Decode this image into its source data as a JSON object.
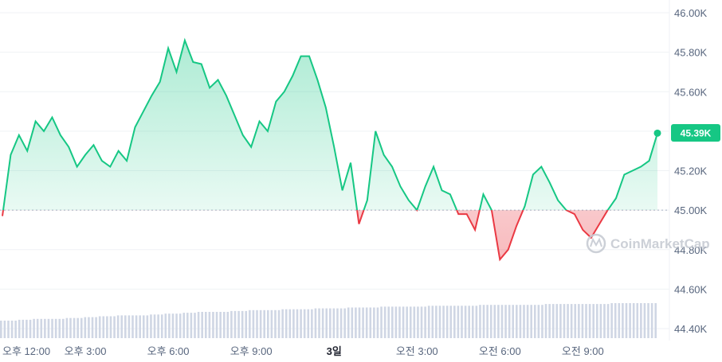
{
  "chart_data": {
    "type": "line",
    "x": [
      "오후 12:00",
      "",
      "",
      "",
      "",
      "",
      "",
      "",
      "",
      "",
      "오후 3:00",
      "",
      "",
      "",
      "",
      "",
      "",
      "",
      "",
      "",
      "오후 6:00",
      "",
      "",
      "",
      "",
      "",
      "",
      "",
      "",
      "",
      "오후 9:00",
      "",
      "",
      "",
      "",
      "",
      "",
      "",
      "",
      "",
      "3일",
      "",
      "",
      "",
      "",
      "",
      "",
      "",
      "",
      "",
      "오전 3:00",
      "",
      "",
      "",
      "",
      "",
      "",
      "",
      "",
      "",
      "오전 6:00",
      "",
      "",
      "",
      "",
      "",
      "",
      "",
      "",
      "",
      "오전 9:00",
      "",
      "",
      "",
      "",
      "",
      "",
      "",
      "",
      ""
    ],
    "values": [
      44.97,
      45.28,
      45.38,
      45.3,
      45.45,
      45.4,
      45.47,
      45.38,
      45.32,
      45.22,
      45.28,
      45.33,
      45.25,
      45.22,
      45.3,
      45.25,
      45.42,
      45.5,
      45.58,
      45.65,
      45.82,
      45.7,
      45.86,
      45.75,
      45.74,
      45.62,
      45.66,
      45.58,
      45.48,
      45.38,
      45.32,
      45.45,
      45.4,
      45.55,
      45.6,
      45.68,
      45.78,
      45.78,
      45.66,
      45.52,
      45.32,
      45.1,
      45.24,
      44.93,
      45.05,
      45.4,
      45.28,
      45.22,
      45.12,
      45.05,
      45.0,
      45.12,
      45.22,
      45.1,
      45.08,
      44.98,
      44.98,
      44.9,
      45.08,
      45.0,
      44.75,
      44.8,
      44.92,
      45.02,
      45.18,
      45.22,
      45.14,
      45.05,
      45.0,
      44.98,
      44.9,
      44.86,
      44.93,
      45.0,
      45.06,
      45.18,
      45.2,
      45.22,
      45.25,
      45.39
    ],
    "baseline": 45.0,
    "current_price_label": "45.39K",
    "y_ticks": [
      "46.00K",
      "45.80K",
      "45.60K",
      "45.40K",
      "45.20K",
      "45.00K",
      "44.80K",
      "44.60K",
      "44.40K"
    ],
    "ylim": [
      44.4,
      46.0
    ],
    "x_tick_labels": [
      "오후 12:00",
      "오후 3:00",
      "오후 6:00",
      "오후 9:00",
      "3일",
      "오전 3:00",
      "오전 6:00",
      "오전 9:00"
    ],
    "bold_x_tick": "3일",
    "volume_relative": [
      0.2,
      0.21,
      0.22,
      0.22,
      0.23,
      0.24,
      0.25,
      0.26,
      0.26,
      0.27,
      0.28,
      0.29,
      0.3,
      0.3,
      0.31,
      0.32,
      0.32,
      0.33,
      0.33,
      0.34,
      0.34,
      0.35,
      0.35,
      0.36,
      0.36,
      0.36,
      0.37,
      0.37,
      0.37,
      0.38,
      0.38,
      0.38,
      0.38,
      0.39,
      0.39,
      0.39,
      0.39,
      0.4,
      0.4,
      0.4
    ],
    "grid": true,
    "colors": {
      "up": "#16c784",
      "down": "#ea3943",
      "grid": "#eff2f5",
      "baseline": "#a6b0c3",
      "volume": "#cfd6e4"
    }
  },
  "watermark": {
    "text": "CoinMarketCap"
  }
}
